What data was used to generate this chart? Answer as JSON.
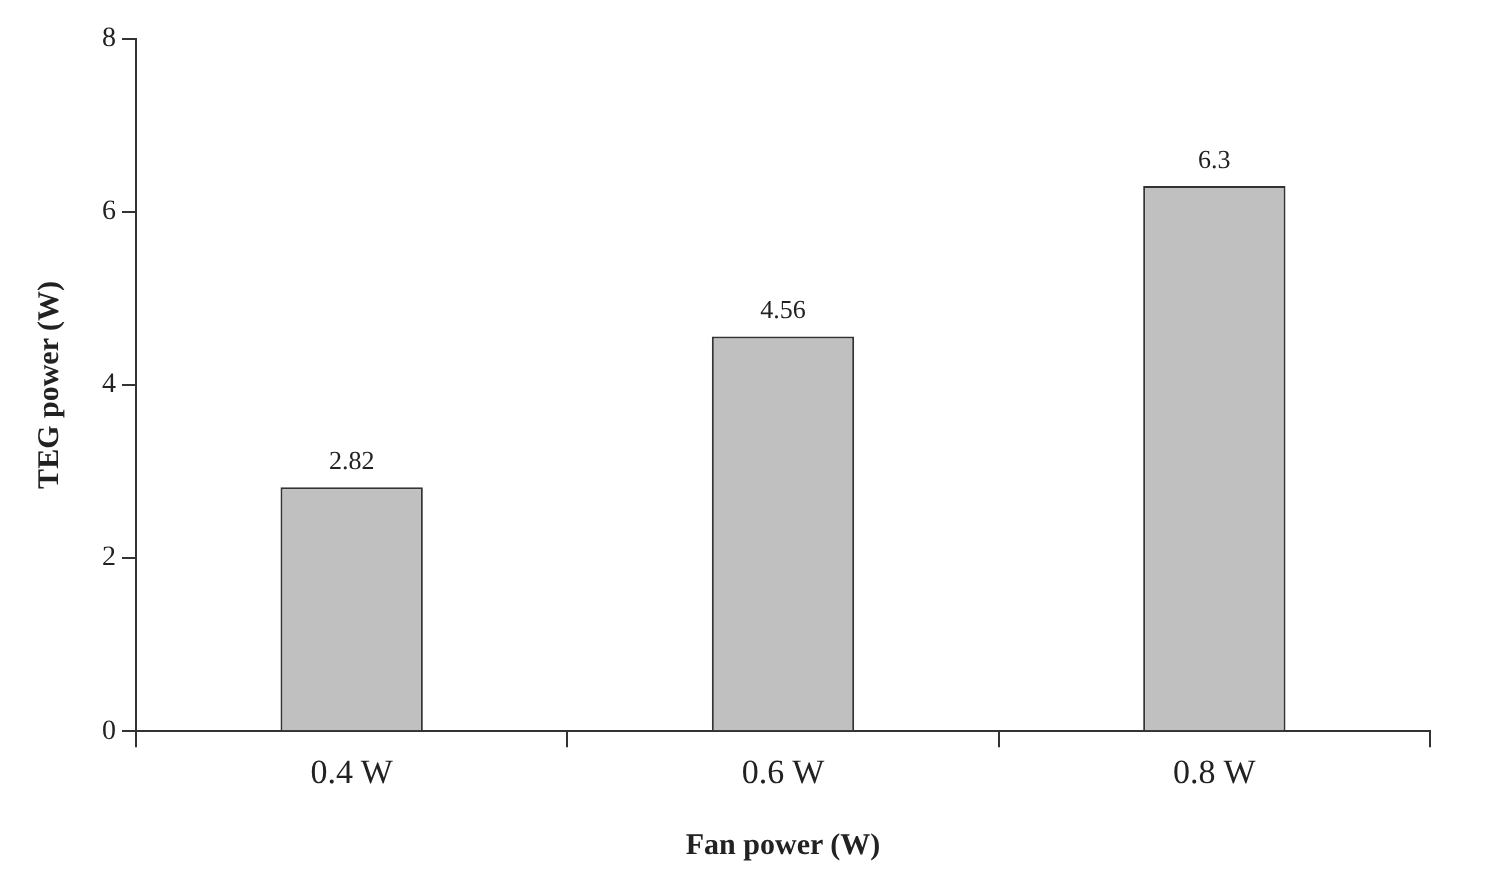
{
  "chart_data": {
    "type": "bar",
    "categories": [
      "0.4 W",
      "0.6 W",
      "0.8 W"
    ],
    "values": [
      2.82,
      4.56,
      6.3
    ],
    "color": "#c0c0c0",
    "xlabel": "Fan power (W)",
    "ylabel": "TEG power (W)",
    "ylim": [
      0,
      8
    ],
    "yticks": [
      0,
      2,
      4,
      6,
      8
    ],
    "data_labels": true,
    "grid": false,
    "legend": false
  }
}
